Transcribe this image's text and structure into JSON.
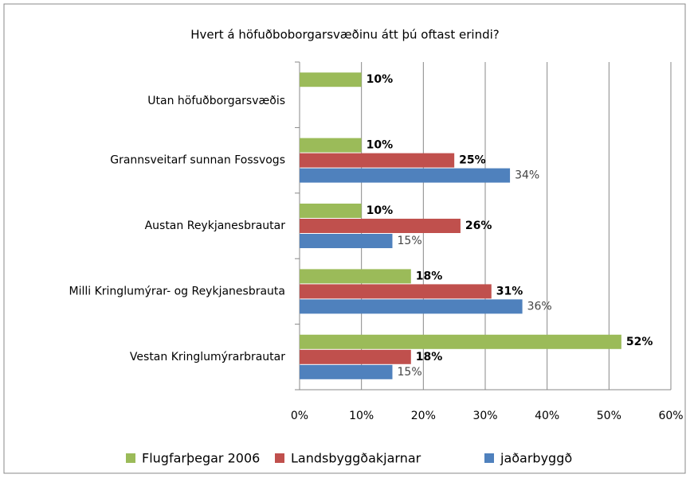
{
  "chart_data": {
    "type": "bar",
    "orientation": "horizontal",
    "title": "Hvert á höfuðboborgarsvæðinu  átt þú oftast erindi?",
    "categories": [
      "Utan höfuðborgarsvæðis",
      "Grannsveitarf sunnan Fossvogs",
      "Austan Reykjanesbrautar",
      "Milli Kringlumýrar- og Reykjanesbrauta",
      "Vestan Kringlumýrarbrautar"
    ],
    "series": [
      {
        "name": "Flugfarþegar 2006",
        "color": "#9bbb59",
        "values": [
          10,
          10,
          10,
          18,
          52
        ],
        "value_labels": [
          "10%",
          "10%",
          "10%",
          "18%",
          "52%"
        ]
      },
      {
        "name": "Landsbyggðakjarnar",
        "color": "#c0504d",
        "values": [
          null,
          25,
          26,
          31,
          18
        ],
        "value_labels": [
          null,
          "25%",
          "26%",
          "31%",
          "18%"
        ]
      },
      {
        "name": "jaðarbyggð",
        "color": "#4f81bd",
        "values": [
          null,
          34,
          15,
          36,
          15
        ],
        "value_labels": [
          null,
          "34%",
          "15%",
          "36%",
          "15%"
        ]
      }
    ],
    "xlim": [
      0,
      60
    ],
    "xticks": [
      {
        "value": 0,
        "label": "0%"
      },
      {
        "value": 10,
        "label": "10%"
      },
      {
        "value": 20,
        "label": "20%"
      },
      {
        "value": 30,
        "label": "30%"
      },
      {
        "value": 40,
        "label": "40%"
      },
      {
        "value": 50,
        "label": "50%"
      },
      {
        "value": 60,
        "label": "60%"
      }
    ],
    "grid": true,
    "legend": "bottom"
  }
}
